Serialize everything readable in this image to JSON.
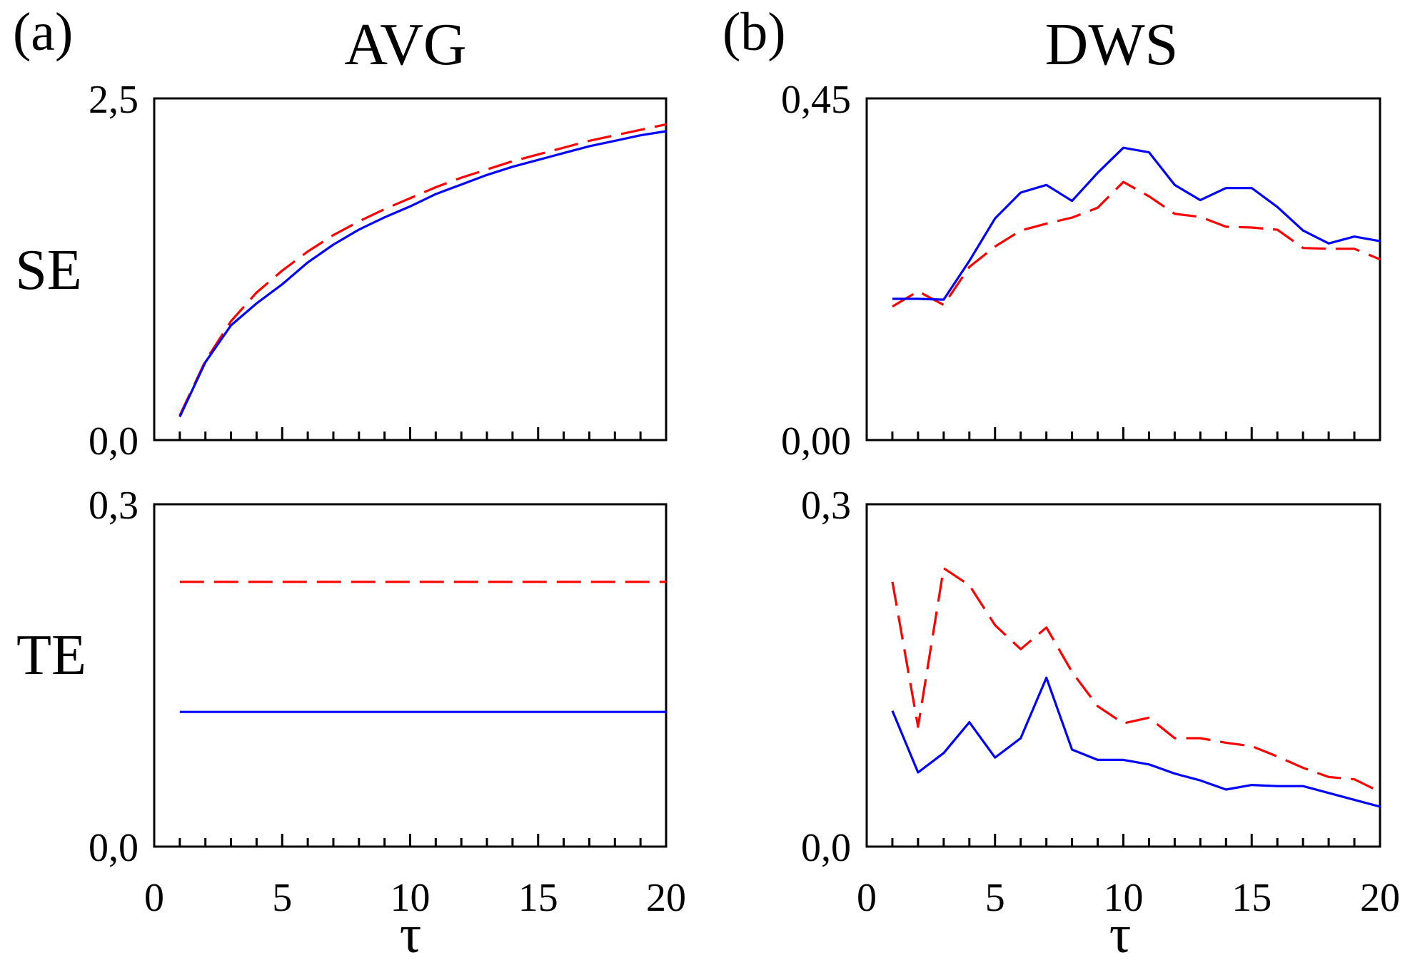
{
  "figure": {
    "columns": [
      {
        "label": "(a)",
        "title": "AVG"
      },
      {
        "label": "(b)",
        "title": "DWS"
      }
    ],
    "rows": [
      {
        "label": "SE"
      },
      {
        "label": "TE"
      }
    ],
    "xlabel": "τ"
  },
  "colors": {
    "blue": "#0000ff",
    "red": "#ff0000"
  },
  "chart_data": [
    {
      "type": "line",
      "id": "avg-se",
      "column": "AVG",
      "row": "SE",
      "xlim": [
        0,
        20
      ],
      "ylim": [
        0,
        2.5
      ],
      "yticks": [
        "0,0",
        "2,5"
      ],
      "xticks": [],
      "x": [
        1,
        2,
        3,
        4,
        5,
        6,
        7,
        8,
        9,
        10,
        11,
        12,
        13,
        14,
        15,
        16,
        17,
        18,
        19,
        20
      ],
      "series": [
        {
          "name": "dashed-red",
          "style": "dashed",
          "color": "#ff0000",
          "values": [
            0.18,
            0.58,
            0.87,
            1.08,
            1.24,
            1.38,
            1.5,
            1.6,
            1.69,
            1.77,
            1.85,
            1.92,
            1.98,
            2.04,
            2.09,
            2.14,
            2.19,
            2.23,
            2.27,
            2.31
          ]
        },
        {
          "name": "solid-blue",
          "style": "solid",
          "color": "#0000ff",
          "values": [
            0.17,
            0.57,
            0.84,
            1.0,
            1.14,
            1.3,
            1.43,
            1.54,
            1.63,
            1.71,
            1.8,
            1.87,
            1.94,
            2.0,
            2.05,
            2.1,
            2.15,
            2.19,
            2.23,
            2.26
          ]
        }
      ]
    },
    {
      "type": "line",
      "id": "dws-se",
      "column": "DWS",
      "row": "SE",
      "xlim": [
        0,
        20
      ],
      "ylim": [
        0,
        0.45
      ],
      "yticks": [
        "0,00",
        "0,45"
      ],
      "xticks": [],
      "x": [
        1,
        2,
        3,
        4,
        5,
        6,
        7,
        8,
        9,
        10,
        11,
        12,
        13,
        14,
        15,
        16,
        17,
        18,
        19,
        20
      ],
      "series": [
        {
          "name": "dashed-red",
          "style": "dashed",
          "color": "#ff0000",
          "values": [
            0.176,
            0.196,
            0.178,
            0.228,
            0.255,
            0.276,
            0.285,
            0.293,
            0.306,
            0.34,
            0.321,
            0.298,
            0.294,
            0.281,
            0.28,
            0.277,
            0.253,
            0.252,
            0.252,
            0.238
          ]
        },
        {
          "name": "solid-blue",
          "style": "solid",
          "color": "#0000ff",
          "values": [
            0.186,
            0.186,
            0.185,
            0.236,
            0.292,
            0.326,
            0.336,
            0.315,
            0.352,
            0.385,
            0.379,
            0.336,
            0.316,
            0.332,
            0.332,
            0.307,
            0.276,
            0.259,
            0.268,
            0.262
          ]
        }
      ]
    },
    {
      "type": "line",
      "id": "avg-te",
      "column": "AVG",
      "row": "TE",
      "xlim": [
        0,
        20
      ],
      "ylim": [
        0,
        0.3
      ],
      "yticks": [
        "0,0",
        "0,3"
      ],
      "xticks": [
        "0",
        "5",
        "10",
        "15",
        "20"
      ],
      "x": [
        1,
        2,
        3,
        4,
        5,
        6,
        7,
        8,
        9,
        10,
        11,
        12,
        13,
        14,
        15,
        16,
        17,
        18,
        19,
        20
      ],
      "series": [
        {
          "name": "dashed-red",
          "style": "dashed",
          "color": "#ff0000",
          "values": [
            0.232,
            0.232,
            0.232,
            0.232,
            0.232,
            0.232,
            0.232,
            0.232,
            0.232,
            0.232,
            0.232,
            0.232,
            0.232,
            0.232,
            0.232,
            0.232,
            0.232,
            0.232,
            0.232,
            0.232
          ]
        },
        {
          "name": "solid-blue",
          "style": "solid",
          "color": "#0000ff",
          "values": [
            0.118,
            0.118,
            0.118,
            0.118,
            0.118,
            0.118,
            0.118,
            0.118,
            0.118,
            0.118,
            0.118,
            0.118,
            0.118,
            0.118,
            0.118,
            0.118,
            0.118,
            0.118,
            0.118,
            0.118
          ]
        }
      ]
    },
    {
      "type": "line",
      "id": "dws-te",
      "column": "DWS",
      "row": "TE",
      "xlim": [
        0,
        20
      ],
      "ylim": [
        0,
        0.3
      ],
      "yticks": [
        "0,0",
        "0,3"
      ],
      "xticks": [
        "0",
        "5",
        "10",
        "15",
        "20"
      ],
      "x": [
        1,
        2,
        3,
        4,
        5,
        6,
        7,
        8,
        9,
        10,
        11,
        12,
        13,
        14,
        15,
        16,
        17,
        18,
        19,
        20
      ],
      "series": [
        {
          "name": "dashed-red",
          "style": "dashed",
          "color": "#ff0000",
          "values": [
            0.232,
            0.105,
            0.244,
            0.229,
            0.194,
            0.173,
            0.192,
            0.153,
            0.123,
            0.108,
            0.113,
            0.095,
            0.095,
            0.091,
            0.088,
            0.079,
            0.069,
            0.061,
            0.059,
            0.048
          ]
        },
        {
          "name": "solid-blue",
          "style": "solid",
          "color": "#0000ff",
          "values": [
            0.119,
            0.065,
            0.082,
            0.109,
            0.078,
            0.095,
            0.148,
            0.085,
            0.076,
            0.076,
            0.072,
            0.064,
            0.058,
            0.05,
            0.054,
            0.053,
            0.053,
            0.047,
            0.041,
            0.035
          ]
        }
      ]
    }
  ]
}
